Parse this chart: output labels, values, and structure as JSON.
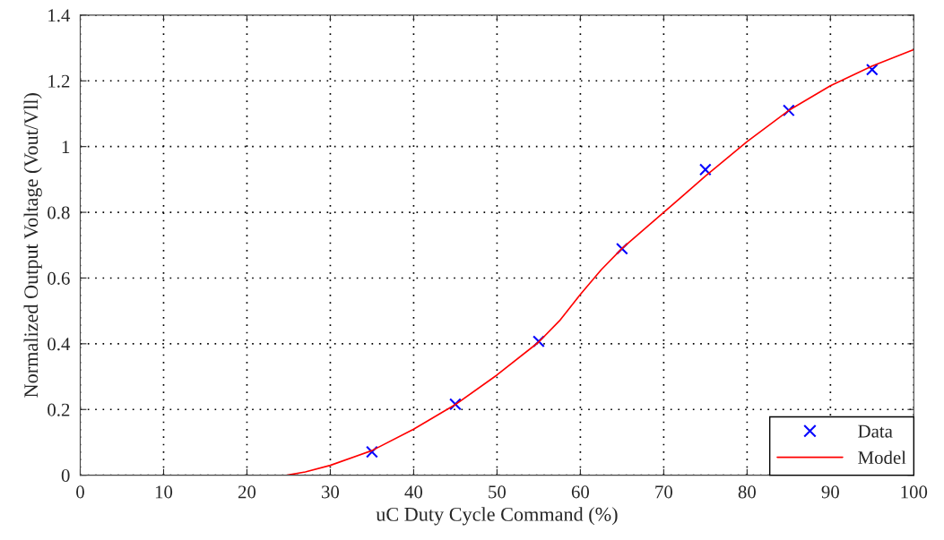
{
  "chart_data": {
    "type": "scatter",
    "xlabel": "uC Duty Cycle Command (%)",
    "ylabel": "Normalized Output Voltage (Vout/Vll)",
    "xlim": [
      0,
      100
    ],
    "ylim": [
      0,
      1.4
    ],
    "xticks": [
      0,
      10,
      20,
      30,
      40,
      50,
      60,
      70,
      80,
      90,
      100
    ],
    "yticks": [
      0,
      0.2,
      0.4,
      0.6,
      0.8,
      1,
      1.2,
      1.4
    ],
    "grid": true,
    "legend": "bottom right",
    "series": [
      {
        "name": "Data",
        "marker": "cross",
        "color": "#0000ff",
        "x": [
          35,
          45,
          55,
          65,
          75,
          85,
          95
        ],
        "values": [
          0.071,
          0.216,
          0.407,
          0.689,
          0.93,
          1.11,
          1.234
        ]
      },
      {
        "name": "Model",
        "type": "line",
        "line_style": "solid",
        "color": "#ff0000",
        "x": [
          24.8,
          27,
          30,
          35,
          40,
          45,
          50,
          55,
          57.5,
          60,
          62.5,
          65,
          70,
          75,
          80,
          85,
          90,
          95,
          100
        ],
        "values": [
          0,
          0.01,
          0.03,
          0.075,
          0.14,
          0.215,
          0.305,
          0.405,
          0.47,
          0.55,
          0.625,
          0.69,
          0.8,
          0.91,
          1.015,
          1.11,
          1.185,
          1.245,
          1.295
        ]
      }
    ]
  }
}
